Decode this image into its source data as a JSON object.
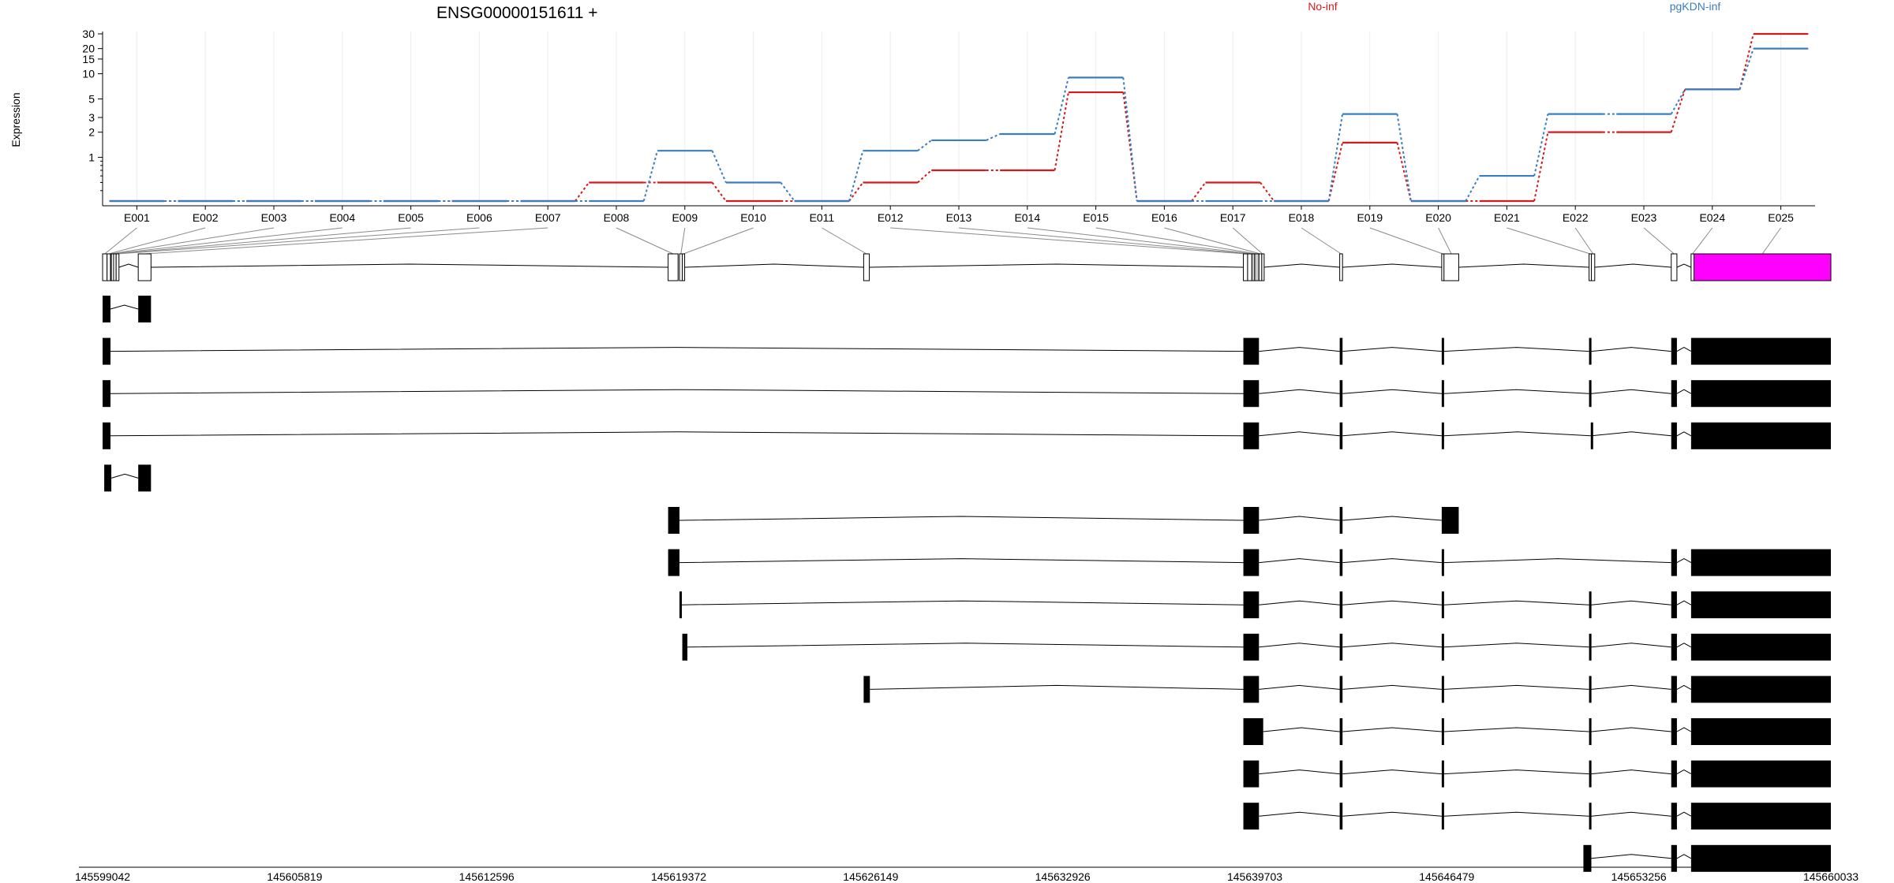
{
  "chart_data": {
    "type": "line",
    "title": "ENSG00000151611 +",
    "ylabel": "Expression",
    "xlabel": "",
    "y_scale": "log",
    "y_ticks": [
      1,
      2,
      3,
      5,
      10,
      15,
      20,
      30
    ],
    "grid": true,
    "legend_placement": "top",
    "categories": [
      "E001",
      "E002",
      "E003",
      "E004",
      "E005",
      "E006",
      "E007",
      "E008",
      "E009",
      "E010",
      "E011",
      "E012",
      "E013",
      "E014",
      "E015",
      "E016",
      "E017",
      "E018",
      "E019",
      "E020",
      "E021",
      "E022",
      "E023",
      "E024",
      "E025"
    ],
    "series": [
      {
        "name": "No-inf",
        "color": "#d7191c",
        "values": [
          0.3,
          0.3,
          0.3,
          0.3,
          0.3,
          0.3,
          0.3,
          0.5,
          0.5,
          0.3,
          0.3,
          0.5,
          0.7,
          0.7,
          6,
          0.3,
          0.5,
          0.3,
          1.5,
          0.3,
          0.3,
          2,
          2,
          6.5,
          30
        ]
      },
      {
        "name": "pgKDN-inf",
        "color": "#3a7dc0",
        "values": [
          0.3,
          0.3,
          0.3,
          0.3,
          0.3,
          0.3,
          0.3,
          0.3,
          1.2,
          0.5,
          0.3,
          1.2,
          1.6,
          1.9,
          9,
          0.3,
          0.3,
          0.3,
          3.3,
          0.3,
          0.6,
          3.3,
          3.3,
          6.5,
          20
        ]
      }
    ],
    "genomic_axis": {
      "range": [
        145599042,
        145660033
      ],
      "tick_labels": [
        "145599042",
        "145605819",
        "145612596",
        "145619372",
        "145626149",
        "145632926",
        "145639703",
        "145646479",
        "145653256",
        "145660033"
      ]
    },
    "gene_model": {
      "exons": [
        {
          "id": "E001",
          "start": 145599042,
          "end": 145599200
        },
        {
          "id": "E002",
          "start": 145599200,
          "end": 145599320
        },
        {
          "id": "E003",
          "start": 145599320,
          "end": 145599350
        },
        {
          "id": "E004",
          "start": 145599350,
          "end": 145599430
        },
        {
          "id": "E005",
          "start": 145599430,
          "end": 145599520
        },
        {
          "id": "E006",
          "start": 145599520,
          "end": 145599620
        },
        {
          "id": "E007",
          "start": 145600300,
          "end": 145600750
        },
        {
          "id": "E008",
          "start": 145619000,
          "end": 145619350
        },
        {
          "id": "E009",
          "start": 145619400,
          "end": 145619500
        },
        {
          "id": "E010",
          "start": 145619500,
          "end": 145619580
        },
        {
          "id": "E011",
          "start": 145625900,
          "end": 145626100
        },
        {
          "id": "E012",
          "start": 145639300,
          "end": 145639450
        },
        {
          "id": "E013",
          "start": 145639450,
          "end": 145639600
        },
        {
          "id": "E014",
          "start": 145639600,
          "end": 145639700
        },
        {
          "id": "E015",
          "start": 145639700,
          "end": 145639850
        },
        {
          "id": "E016",
          "start": 145639850,
          "end": 145639950
        },
        {
          "id": "E017",
          "start": 145639950,
          "end": 145640000
        },
        {
          "id": "E018",
          "start": 145642700,
          "end": 145642800
        },
        {
          "id": "E019",
          "start": 145646300,
          "end": 145646380
        },
        {
          "id": "E020",
          "start": 145646380,
          "end": 145646900
        },
        {
          "id": "E021",
          "start": 145651500,
          "end": 145651580
        },
        {
          "id": "E022",
          "start": 145651580,
          "end": 145651700
        },
        {
          "id": "E023",
          "start": 145654400,
          "end": 145654600
        },
        {
          "id": "E024",
          "start": 145655100,
          "end": 145655200
        },
        {
          "id": "E025",
          "start": 145655200,
          "end": 145660033
        }
      ],
      "highlighted_exon": "E025",
      "highlight_color": "#ff00ff"
    },
    "transcripts": [
      [
        [
          145599042,
          145599320
        ],
        [
          145600300,
          145600750
        ]
      ],
      [
        [
          145599042,
          145599320
        ],
        [
          145639300,
          145639850
        ],
        [
          145642700,
          145642800
        ],
        [
          145646300,
          145646380
        ],
        [
          145651500,
          145651580
        ],
        [
          145654400,
          145654600
        ],
        [
          145655100,
          145660033
        ]
      ],
      [
        [
          145599042,
          145599320
        ],
        [
          145639300,
          145639850
        ],
        [
          145642700,
          145642800
        ],
        [
          145646300,
          145646380
        ],
        [
          145651500,
          145651580
        ],
        [
          145654400,
          145654600
        ],
        [
          145655100,
          145660033
        ]
      ],
      [
        [
          145599042,
          145599320
        ],
        [
          145639300,
          145639850
        ],
        [
          145642700,
          145642800
        ],
        [
          145646300,
          145646380
        ],
        [
          145651560,
          145651585
        ],
        [
          145654400,
          145654600
        ],
        [
          145655100,
          145660033
        ]
      ],
      [
        [
          145599100,
          145599350
        ],
        [
          145600300,
          145600750
        ]
      ],
      [
        [
          145619000,
          145619400
        ],
        [
          145639300,
          145639850
        ],
        [
          145642700,
          145642800
        ],
        [
          145646300,
          145646900
        ]
      ],
      [
        [
          145619000,
          145619400
        ],
        [
          145639300,
          145639850
        ],
        [
          145642700,
          145642800
        ],
        [
          145646300,
          145646380
        ],
        [
          145654400,
          145654600
        ],
        [
          145655100,
          145660033
        ]
      ],
      [
        [
          145619400,
          145619430
        ],
        [
          145639300,
          145639850
        ],
        [
          145642700,
          145642800
        ],
        [
          145646300,
          145646380
        ],
        [
          145651500,
          145651580
        ],
        [
          145654400,
          145654600
        ],
        [
          145655100,
          145660033
        ]
      ],
      [
        [
          145619500,
          145619680
        ],
        [
          145639300,
          145639850
        ],
        [
          145642700,
          145642800
        ],
        [
          145646300,
          145646380
        ],
        [
          145651500,
          145651580
        ],
        [
          145654400,
          145654600
        ],
        [
          145655100,
          145660033
        ]
      ],
      [
        [
          145625900,
          145626120
        ],
        [
          145639300,
          145639850
        ],
        [
          145642700,
          145642800
        ],
        [
          145646300,
          145646380
        ],
        [
          145651500,
          145651580
        ],
        [
          145654400,
          145654600
        ],
        [
          145655100,
          145660033
        ]
      ],
      [
        [
          145639300,
          145640000
        ],
        [
          145642700,
          145642800
        ],
        [
          145646300,
          145646380
        ],
        [
          145651500,
          145651580
        ],
        [
          145654400,
          145654600
        ],
        [
          145655100,
          145660033
        ]
      ],
      [
        [
          145639300,
          145639850
        ],
        [
          145642700,
          145642800
        ],
        [
          145646300,
          145646380
        ],
        [
          145651500,
          145651580
        ],
        [
          145654400,
          145654600
        ],
        [
          145655100,
          145660033
        ]
      ],
      [
        [
          145639300,
          145639850
        ],
        [
          145642700,
          145642800
        ],
        [
          145646300,
          145646380
        ],
        [
          145651500,
          145651580
        ],
        [
          145654400,
          145654600
        ],
        [
          145655100,
          145660033
        ]
      ],
      [
        [
          145651300,
          145651580
        ],
        [
          145654400,
          145654600
        ],
        [
          145655100,
          145660033
        ]
      ]
    ]
  }
}
